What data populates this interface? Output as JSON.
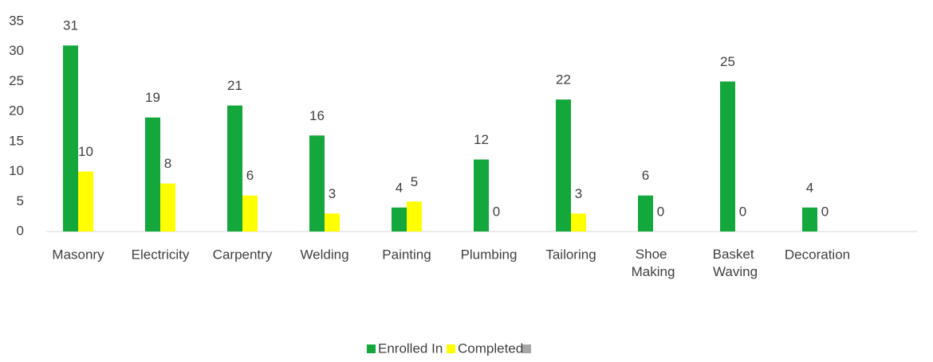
{
  "chart_data": {
    "type": "bar",
    "categories": [
      "Masonry",
      "Electricity",
      "Carpentry",
      "Welding",
      "Painting",
      "Plumbing",
      "Tailoring",
      "Shoe Making",
      "Basket Waving",
      "Decoration"
    ],
    "series": [
      {
        "name": "Enrolled In",
        "color": "#14a83c",
        "values": [
          31,
          19,
          21,
          16,
          4,
          12,
          22,
          6,
          25,
          4
        ]
      },
      {
        "name": "Completed",
        "color": "#ffff00",
        "values": [
          10,
          8,
          6,
          3,
          5,
          0,
          3,
          0,
          0,
          0
        ]
      }
    ],
    "ylim": [
      0,
      35
    ],
    "yticks": [
      0,
      5,
      10,
      15,
      20,
      25,
      30,
      35
    ],
    "legend": "bottom"
  }
}
